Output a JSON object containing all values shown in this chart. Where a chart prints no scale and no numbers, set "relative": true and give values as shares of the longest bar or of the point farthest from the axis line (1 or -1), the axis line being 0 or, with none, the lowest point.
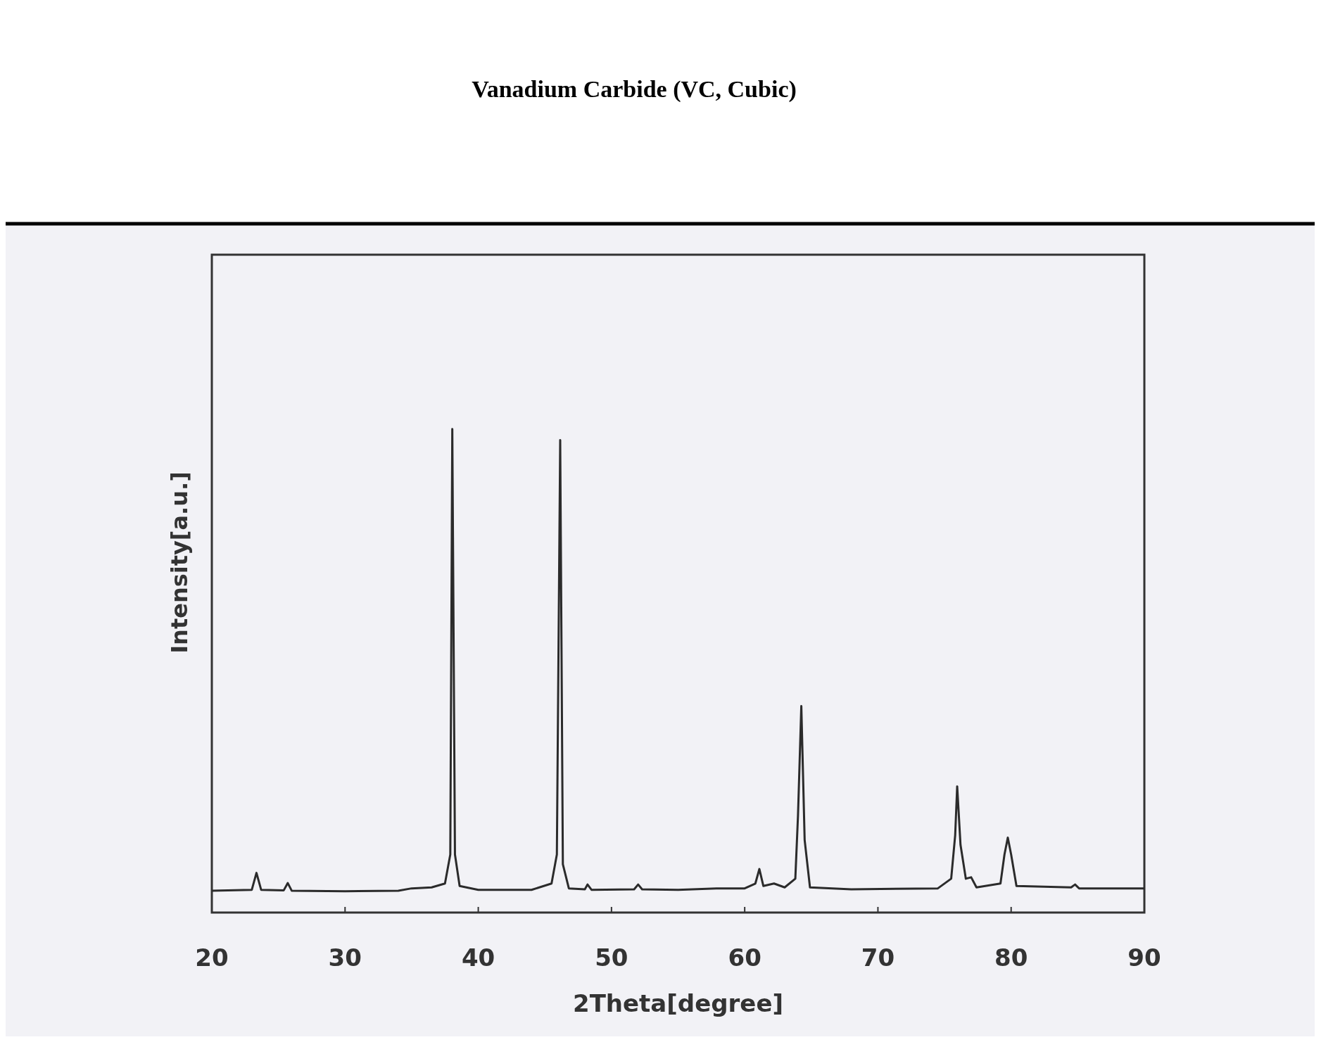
{
  "chart_data": {
    "type": "line",
    "title": "Vanadium Carbide (VC, Cubic)",
    "xlabel": "2Theta[degree]",
    "ylabel": "Intensity[a.u.]",
    "relative": true,
    "xlim": [
      20,
      90
    ],
    "xticks": [
      20,
      30,
      40,
      50,
      60,
      70,
      80,
      90
    ],
    "x": [
      20,
      23.0,
      23.35,
      23.7,
      25.4,
      25.7,
      26.0,
      30,
      34,
      35,
      36.5,
      37.5,
      37.9,
      38.05,
      38.25,
      38.6,
      40,
      44,
      45.5,
      45.9,
      46.15,
      46.35,
      46.8,
      48,
      48.2,
      48.5,
      51.7,
      52.0,
      52.3,
      55,
      58,
      60,
      60.8,
      61.1,
      61.4,
      62.2,
      63,
      63.8,
      64.0,
      64.25,
      64.5,
      64.9,
      68,
      74.5,
      75.5,
      75.8,
      75.95,
      76.2,
      76.6,
      77.0,
      77.4,
      79.2,
      79.5,
      79.75,
      80.0,
      80.4,
      84.5,
      84.8,
      85.1,
      90
    ],
    "series": [
      {
        "color": "#2b2b2b",
        "values": [
          0.045,
          0.047,
          0.082,
          0.047,
          0.046,
          0.061,
          0.045,
          0.044,
          0.045,
          0.05,
          0.052,
          0.06,
          0.12,
          1.0,
          0.12,
          0.055,
          0.047,
          0.047,
          0.06,
          0.12,
          0.977,
          0.1,
          0.05,
          0.048,
          0.058,
          0.047,
          0.048,
          0.058,
          0.048,
          0.047,
          0.05,
          0.05,
          0.06,
          0.09,
          0.055,
          0.06,
          0.052,
          0.07,
          0.2,
          0.427,
          0.15,
          0.052,
          0.048,
          0.05,
          0.07,
          0.16,
          0.261,
          0.14,
          0.07,
          0.073,
          0.052,
          0.06,
          0.12,
          0.155,
          0.12,
          0.055,
          0.052,
          0.058,
          0.05,
          0.05
        ]
      }
    ]
  }
}
